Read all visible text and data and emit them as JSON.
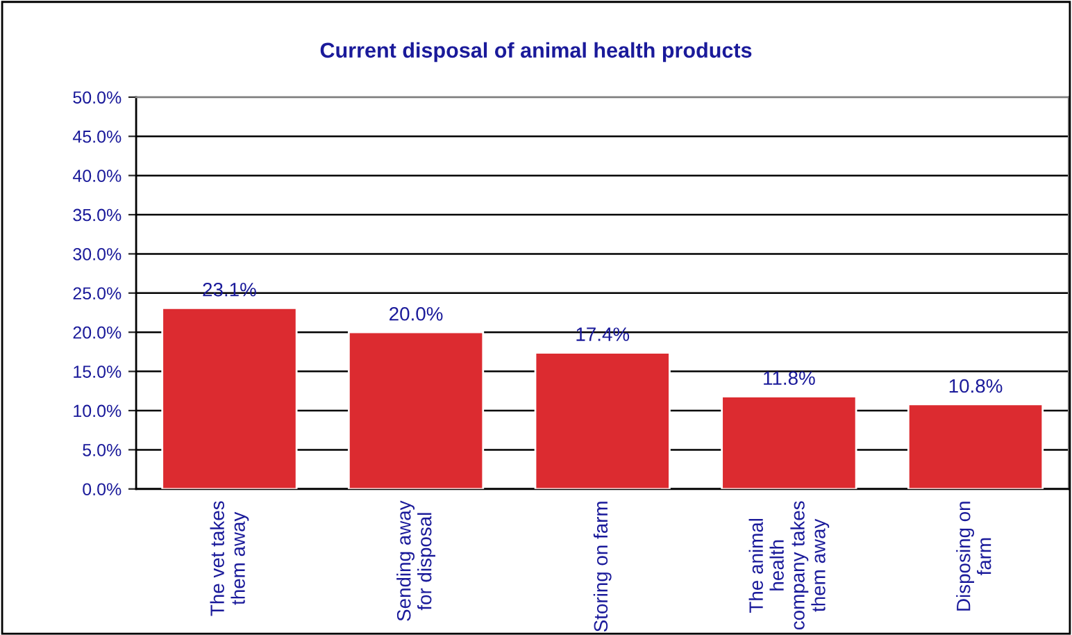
{
  "chart_data": {
    "type": "bar",
    "title": "Current disposal of animal health products",
    "categories": [
      "The vet takes\nthem away",
      "Sending away\nfor disposal",
      "Storing on farm",
      "The animal\nhealth\ncompany takes\nthem away",
      "Disposing on\nfarm"
    ],
    "values": [
      23.1,
      20.0,
      17.4,
      11.8,
      10.8
    ],
    "value_labels": [
      "23.1%",
      "20.0%",
      "17.4%",
      "11.8%",
      "10.8%"
    ],
    "color": "#dc2b30",
    "ylim": [
      0,
      50
    ],
    "yticks": [
      {
        "value": 0,
        "label": "0.0%"
      },
      {
        "value": 5,
        "label": "5.0%"
      },
      {
        "value": 10,
        "label": "10.0%"
      },
      {
        "value": 15,
        "label": "15.0%"
      },
      {
        "value": 20,
        "label": "20.0%"
      },
      {
        "value": 25,
        "label": "25.0%"
      },
      {
        "value": 30,
        "label": "30.0%"
      },
      {
        "value": 35,
        "label": "35.0%"
      },
      {
        "value": 40,
        "label": "40.0%"
      },
      {
        "value": 45,
        "label": "45.0%"
      },
      {
        "value": 50,
        "label": "50.0%"
      }
    ],
    "grid": "y"
  }
}
